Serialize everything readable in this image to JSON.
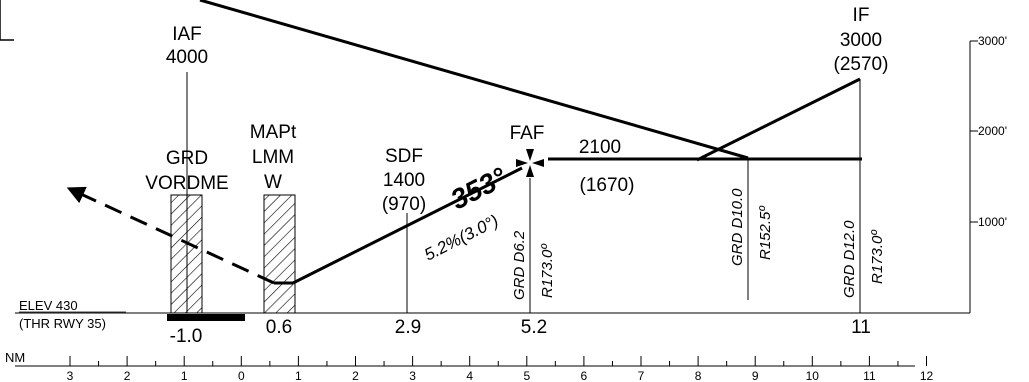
{
  "fixes": {
    "iaf": {
      "name": "IAF",
      "alt": "4000"
    },
    "grd": {
      "line1": "GRD",
      "line2": "VORDME"
    },
    "mapt": {
      "line1": "MAPt",
      "line2": "LMM",
      "line3": "W"
    },
    "sdf": {
      "name": "SDF",
      "alt": "1400",
      "height": "(970)"
    },
    "faf": {
      "name": "FAF"
    },
    "if": {
      "name": "IF",
      "alt": "3000",
      "height": "(2570)"
    }
  },
  "segment": {
    "alt": "2100",
    "height": "(1670)"
  },
  "course": {
    "value": "353°",
    "gradient": "5.2%(3.0°)"
  },
  "radials": {
    "faf_dist": "GRD D6.2",
    "faf_radial": "R173.0º",
    "d10_dist": "GRD D10.0",
    "d10_radial": "R152.5º",
    "d12_dist": "GRD D12.0",
    "d12_radial": "R173.0º"
  },
  "elevation": {
    "elev": "ELEV  430",
    "thr": "(THR RWY 35)"
  },
  "distances": [
    "-1.0",
    "0.6",
    "2.9",
    "5.2",
    "11"
  ],
  "altitude_scale": [
    "3000'",
    "2000'",
    "1000'"
  ],
  "nm_scale": {
    "unit": "NM",
    "ticks": [
      "3",
      "2",
      "1",
      "0",
      "1",
      "2",
      "3",
      "4",
      "5",
      "6",
      "7",
      "8",
      "9",
      "10",
      "11",
      "12"
    ]
  }
}
